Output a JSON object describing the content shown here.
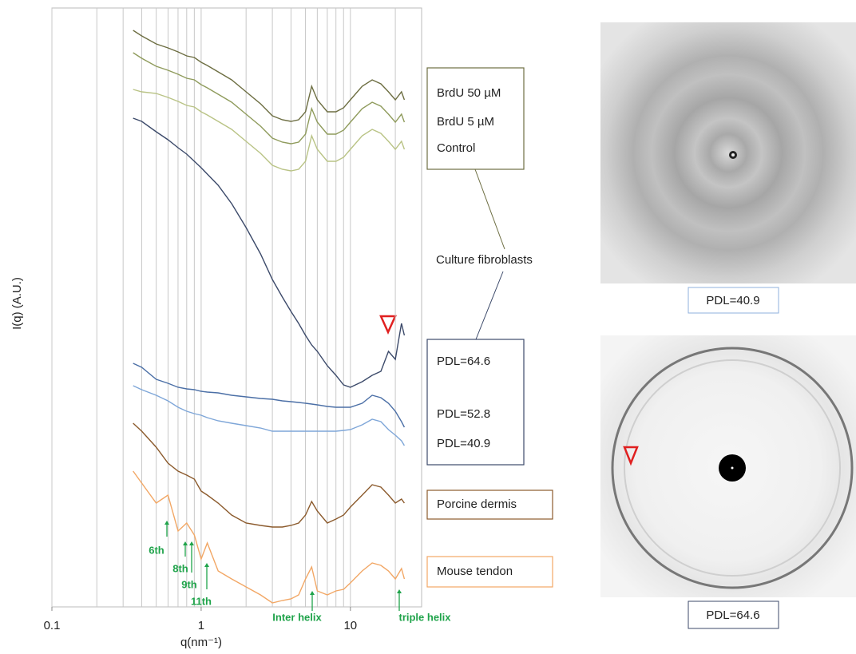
{
  "chart_data": {
    "type": "line",
    "x_label": "q(nm⁻¹)",
    "y_label": "I(q) (A.U.)",
    "xscale": "log",
    "xlim": [
      0.1,
      30
    ],
    "xticks": [
      0.1,
      1,
      10
    ],
    "xgrid_minor": [
      0.2,
      0.3,
      0.4,
      0.5,
      0.6,
      0.7,
      0.8,
      0.9,
      2,
      3,
      4,
      5,
      6,
      7,
      8,
      9,
      20
    ],
    "ylim": [
      0,
      750
    ],
    "grid": true,
    "x": [
      0.35,
      0.4,
      0.5,
      0.6,
      0.7,
      0.8,
      0.9,
      1,
      1.1,
      1.3,
      1.6,
      2,
      2.5,
      3,
      3.5,
      4,
      4.5,
      5,
      5.5,
      6,
      7,
      8,
      9,
      10,
      12,
      14,
      16,
      18,
      20,
      22,
      23
    ],
    "series": [
      {
        "name": "BrdU 50 µM",
        "color": "#6d6e42",
        "values": [
          722,
          715,
          705,
          700,
          695,
          690,
          688,
          682,
          678,
          670,
          660,
          645,
          630,
          615,
          610,
          608,
          610,
          620,
          652,
          635,
          620,
          620,
          625,
          635,
          652,
          660,
          655,
          645,
          635,
          645,
          635
        ]
      },
      {
        "name": "BrdU 5 µM",
        "color": "#8f9b5c",
        "values": [
          694,
          687,
          677,
          672,
          667,
          662,
          660,
          654,
          650,
          642,
          632,
          617,
          602,
          587,
          582,
          580,
          582,
          592,
          624,
          607,
          592,
          592,
          597,
          607,
          624,
          632,
          627,
          617,
          607,
          617,
          607
        ]
      },
      {
        "name": "Control",
        "color": "#b9c385",
        "values": [
          648,
          645,
          643,
          638,
          633,
          628,
          626,
          620,
          616,
          608,
          598,
          583,
          568,
          553,
          548,
          546,
          548,
          558,
          590,
          573,
          558,
          558,
          563,
          573,
          590,
          598,
          593,
          583,
          573,
          583,
          573
        ]
      },
      {
        "name": "PDL=64.6",
        "color": "#3c4a6a",
        "values": [
          612,
          608,
          595,
          585,
          575,
          567,
          558,
          550,
          542,
          528,
          505,
          475,
          442,
          410,
          388,
          370,
          355,
          340,
          328,
          320,
          302,
          290,
          278,
          275,
          282,
          290,
          295,
          320,
          310,
          355,
          340
        ]
      },
      {
        "name": "PDL=52.8",
        "color": "#4b6fa6",
        "values": [
          305,
          300,
          285,
          280,
          275,
          273,
          272,
          270,
          269,
          268,
          265,
          263,
          261,
          260,
          258,
          257,
          256,
          255,
          254,
          253,
          251,
          250,
          250,
          250,
          255,
          265,
          262,
          255,
          245,
          232,
          225
        ]
      },
      {
        "name": "PDL=40.9",
        "color": "#7ea6d8",
        "values": [
          277,
          272,
          265,
          258,
          250,
          245,
          242,
          240,
          237,
          233,
          230,
          227,
          224,
          220,
          220,
          220,
          220,
          220,
          220,
          220,
          220,
          220,
          221,
          222,
          228,
          235,
          232,
          222,
          215,
          208,
          202
        ]
      },
      {
        "name": "Porcine dermis",
        "color": "#8b5a2c",
        "values": [
          230,
          220,
          200,
          180,
          170,
          165,
          160,
          145,
          140,
          130,
          115,
          105,
          102,
          100,
          100,
          102,
          105,
          115,
          132,
          120,
          105,
          110,
          115,
          125,
          140,
          153,
          150,
          140,
          130,
          135,
          130
        ]
      },
      {
        "name": "Mouse tendon",
        "color": "#f2a765",
        "values": [
          170,
          155,
          130,
          140,
          95,
          105,
          90,
          60,
          80,
          45,
          35,
          25,
          15,
          5,
          8,
          10,
          15,
          35,
          50,
          20,
          15,
          20,
          22,
          30,
          45,
          55,
          52,
          45,
          35,
          48,
          35
        ]
      }
    ],
    "group_label": "Culture fibroblasts",
    "annotations": [
      "6th",
      "8th",
      "9th",
      "11th",
      "Inter helix",
      "triple helix"
    ]
  },
  "images": [
    {
      "label": "PDL=40.9"
    },
    {
      "label": "PDL=64.6"
    }
  ]
}
